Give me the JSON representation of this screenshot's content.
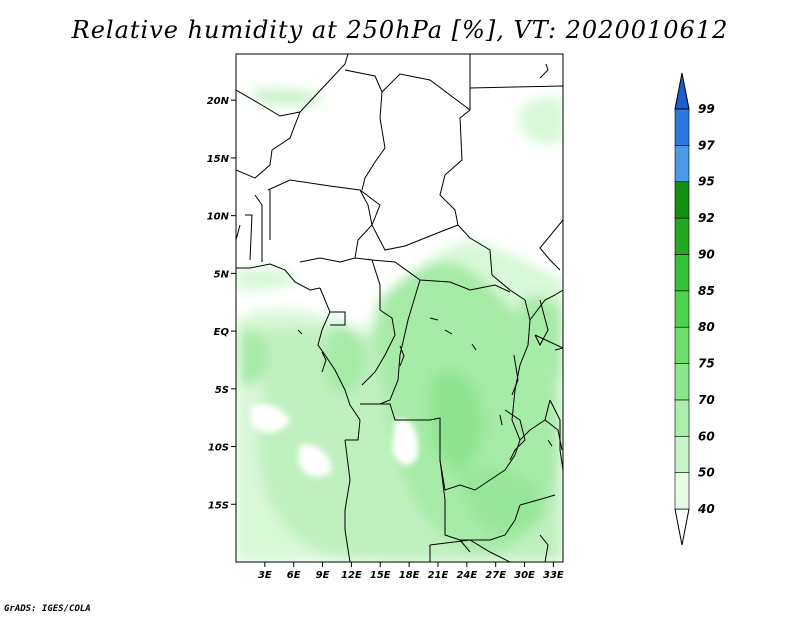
{
  "title": "Relative humidity at 250hPa [%], VT: 2020010612",
  "credit": "GrADS: IGES/COLA",
  "map": {
    "lon_range": [
      0,
      34
    ],
    "lat_range": [
      -20,
      24
    ],
    "projection": "latlon",
    "lat_ticks": [
      {
        "value": 20,
        "label": "20N"
      },
      {
        "value": 15,
        "label": "15N"
      },
      {
        "value": 10,
        "label": "10N"
      },
      {
        "value": 5,
        "label": "5N"
      },
      {
        "value": 0,
        "label": "EQ"
      },
      {
        "value": -5,
        "label": "5S"
      },
      {
        "value": -10,
        "label": "10S"
      },
      {
        "value": -15,
        "label": "15S"
      }
    ],
    "lon_ticks": [
      {
        "value": 3,
        "label": "3E"
      },
      {
        "value": 6,
        "label": "6E"
      },
      {
        "value": 9,
        "label": "9E"
      },
      {
        "value": 12,
        "label": "12E"
      },
      {
        "value": 15,
        "label": "15E"
      },
      {
        "value": 18,
        "label": "18E"
      },
      {
        "value": 21,
        "label": "21E"
      },
      {
        "value": 24,
        "label": "24E"
      },
      {
        "value": 27,
        "label": "27E"
      },
      {
        "value": 30,
        "label": "30E"
      },
      {
        "value": 33,
        "label": "33E"
      }
    ]
  },
  "colorbar": {
    "levels": [
      {
        "label": "40",
        "color": "#e6fce6"
      },
      {
        "label": "50",
        "color": "#c8f5c8"
      },
      {
        "label": "60",
        "color": "#a9eea9"
      },
      {
        "label": "70",
        "color": "#8ae68a"
      },
      {
        "label": "75",
        "color": "#6cde6c"
      },
      {
        "label": "80",
        "color": "#4cd44c"
      },
      {
        "label": "85",
        "color": "#36c036"
      },
      {
        "label": "90",
        "color": "#22a822"
      },
      {
        "label": "92",
        "color": "#129012"
      },
      {
        "label": "95",
        "color": "#4a9ae8"
      },
      {
        "label": "97",
        "color": "#2a7ae0"
      },
      {
        "label": "99",
        "color": "#1a5ed0"
      }
    ],
    "bottom_color": "#ffffff",
    "top_color": "#1a5ed0"
  }
}
